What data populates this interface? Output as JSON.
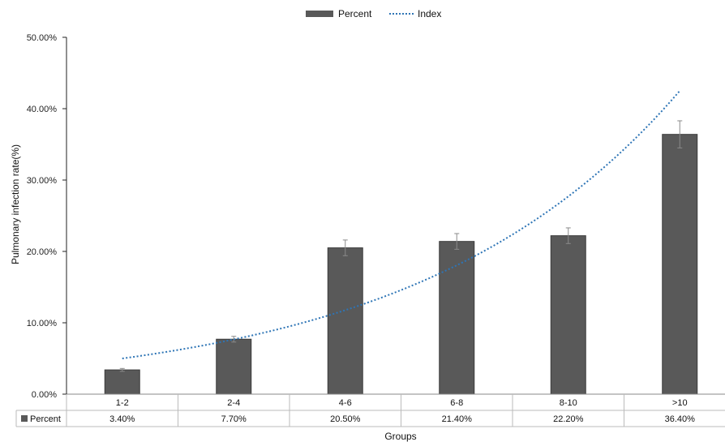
{
  "chart_data": {
    "type": "bar",
    "categories": [
      "1-2",
      "2-4",
      "4-6",
      "6-8",
      "8-10",
      ">10"
    ],
    "series": [
      {
        "name": "Percent",
        "values": [
          3.4,
          7.7,
          20.5,
          21.4,
          22.2,
          36.4
        ],
        "value_labels": [
          "3.40%",
          "7.70%",
          "20.50%",
          "21.40%",
          "22.20%",
          "36.40%"
        ],
        "error": [
          0.2,
          0.4,
          1.1,
          1.1,
          1.1,
          1.9
        ],
        "color": "#595959"
      }
    ],
    "trendline": {
      "name": "Index",
      "type": "exponential",
      "style": "dotted",
      "color": "#2e75b6",
      "values": [
        5.0,
        7.7,
        11.8,
        17.6,
        27.0,
        42.5
      ]
    },
    "xlabel": "Groups",
    "ylabel": "Pulmonary infection rate(%)",
    "ylim": [
      0,
      50
    ],
    "yticks": [
      0,
      10,
      20,
      30,
      40,
      50
    ],
    "ytick_labels": [
      "0.00%",
      "10.00%",
      "20.00%",
      "30.00%",
      "40.00%",
      "50.00%"
    ],
    "legend": {
      "position": "top-center",
      "items": [
        "Percent",
        "Index"
      ]
    },
    "data_table": {
      "row_label": "Percent"
    },
    "grid": false
  }
}
